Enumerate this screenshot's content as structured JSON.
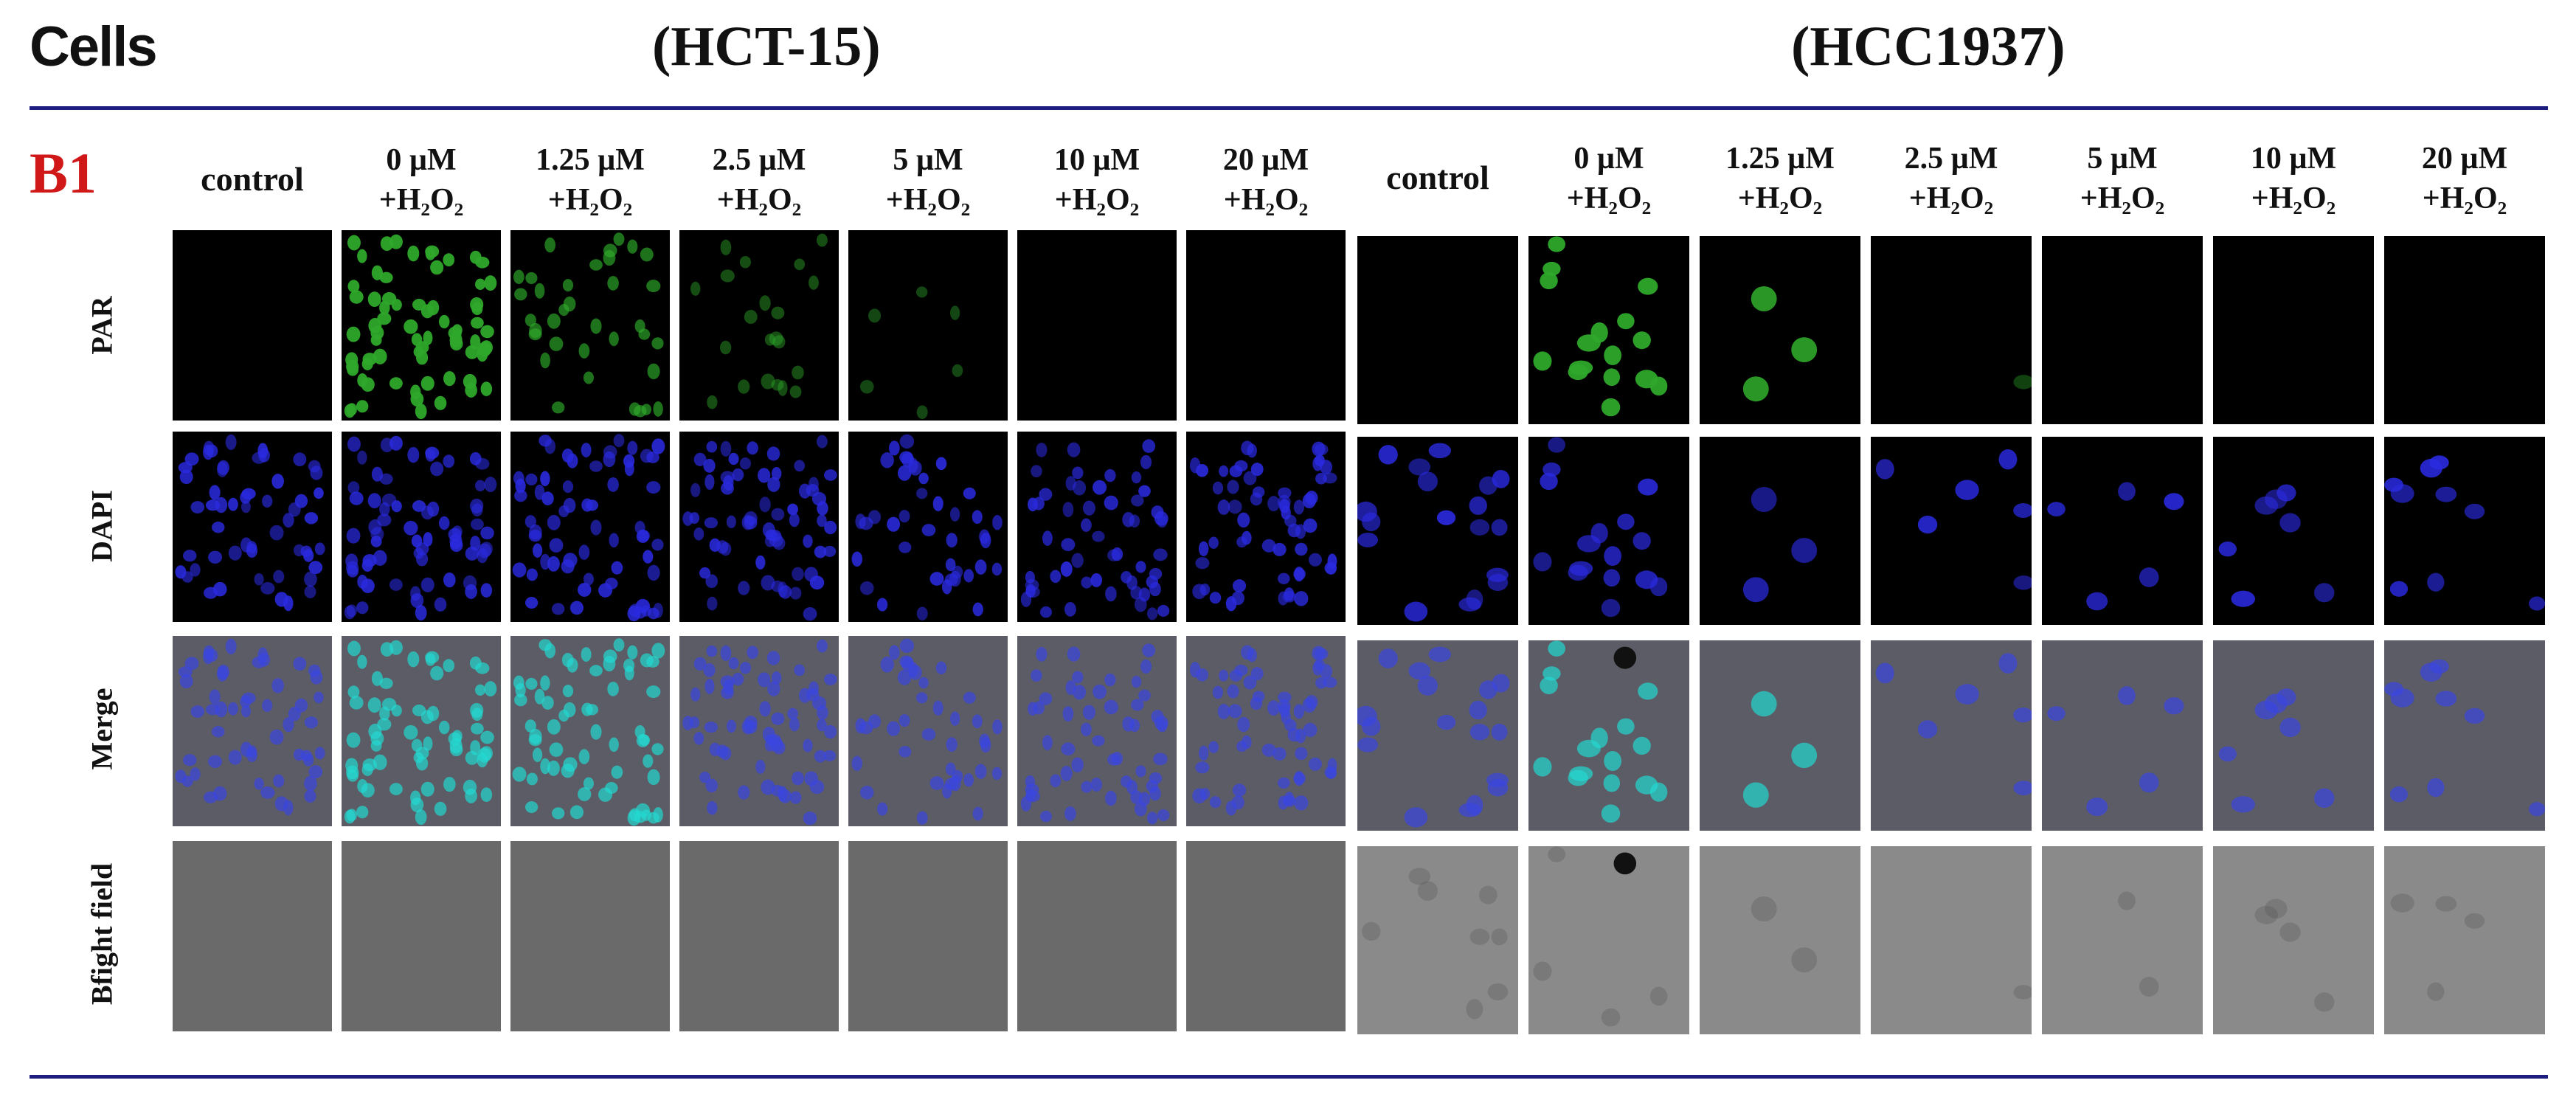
{
  "header": {
    "cells_label": "Cells",
    "groups": [
      "(HCT-15)",
      "(HCC1937)"
    ],
    "panel_label": "B1"
  },
  "columns": [
    {
      "line1": "control",
      "line2": ""
    },
    {
      "line1": "0 µM",
      "line2": "+H₂O₂"
    },
    {
      "line1": "1.25 µM",
      "line2": "+H₂O₂"
    },
    {
      "line1": "2.5 µM",
      "line2": "+H₂O₂"
    },
    {
      "line1": "5 µM",
      "line2": "+H₂O₂"
    },
    {
      "line1": "10 µM",
      "line2": "+H₂O₂"
    },
    {
      "line1": "20 µM",
      "line2": "+H₂O₂"
    }
  ],
  "rows": [
    "PAR",
    "DAPI",
    "Merge",
    "Bfight field"
  ],
  "colors": {
    "rule": "#1d1d80",
    "panel_label": "#d01818",
    "par_stain": "#2ea82a",
    "dapi_stain": "#2a2ae0",
    "merge_overlap": "#22d8d0",
    "brightfield_bg": "#707070"
  }
}
